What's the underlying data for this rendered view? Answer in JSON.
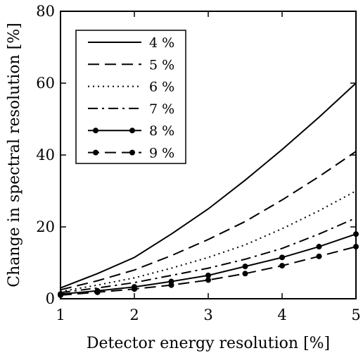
{
  "chart_data": {
    "type": "line",
    "title": "",
    "xlabel": "Detector energy resolution [%]",
    "ylabel": "Change in spectral resolution [%]",
    "xlim": [
      1,
      5
    ],
    "ylim": [
      0,
      80
    ],
    "xticks": [
      1,
      2,
      3,
      4,
      5
    ],
    "yticks": [
      0,
      20,
      40,
      60,
      80
    ],
    "grid": false,
    "legend_position": "top-left",
    "x": [
      1,
      1.5,
      2,
      2.5,
      3,
      3.5,
      4,
      4.5,
      5
    ],
    "series": [
      {
        "name": "4 %",
        "style": "solid",
        "markers": false,
        "values": [
          3,
          7,
          11.5,
          18,
          25,
          33,
          41.5,
          50.5,
          60
        ]
      },
      {
        "name": "5 %",
        "style": "dashed",
        "markers": false,
        "values": [
          2.5,
          5,
          8,
          12,
          16.5,
          21.5,
          27.5,
          34,
          41
        ]
      },
      {
        "name": "6 %",
        "style": "dotted",
        "markers": false,
        "values": [
          2,
          3.8,
          5.8,
          8.5,
          11.5,
          15,
          19.5,
          24.5,
          30
        ]
      },
      {
        "name": "7 %",
        "style": "dashdot",
        "markers": false,
        "values": [
          1.7,
          3,
          4.5,
          6.5,
          8.5,
          11,
          14,
          18,
          22.5
        ]
      },
      {
        "name": "8 %",
        "style": "solid",
        "markers": true,
        "values": [
          1.3,
          2.2,
          3.3,
          4.8,
          6.5,
          9,
          11.5,
          14.5,
          18
        ]
      },
      {
        "name": "9 %",
        "style": "dashed",
        "markers": true,
        "values": [
          1,
          1.8,
          2.7,
          3.8,
          5.2,
          7,
          9.2,
          11.8,
          14.5
        ]
      }
    ]
  }
}
